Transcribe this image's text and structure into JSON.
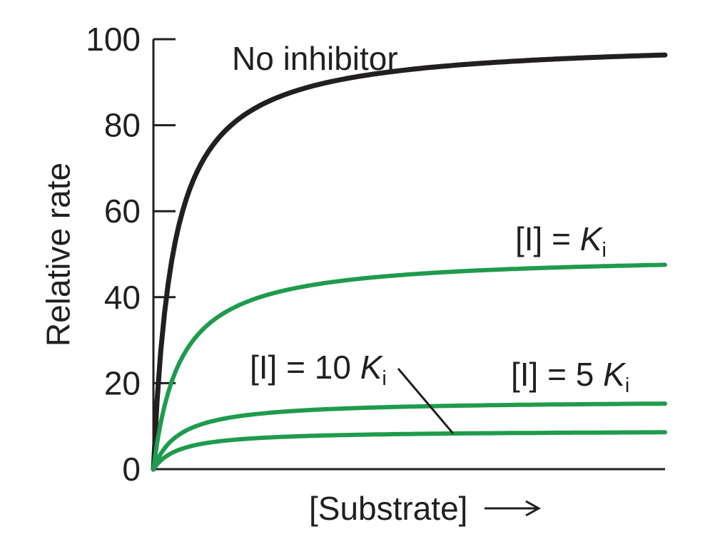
{
  "chart_data": {
    "type": "line",
    "title": "",
    "xlabel": "[Substrate]",
    "ylabel": "Relative rate",
    "ylim": [
      0,
      100
    ],
    "yticks": [
      0,
      20,
      40,
      60,
      80,
      100
    ],
    "xticks": [],
    "grid": false,
    "x_axis_arrow": true,
    "legend_position": "inline-annotations",
    "series": [
      {
        "name": "No inhibitor",
        "color": "#231f20",
        "vmax": 100,
        "km_fraction": 0.038,
        "plateau_value_shown": 96
      },
      {
        "name": "[I] = Ki",
        "color": "#1f9b4d",
        "vmax": 50,
        "km_fraction": 0.052,
        "plateau_value_shown": 48
      },
      {
        "name": "[I] = 5 Ki",
        "color": "#1f9b4d",
        "vmax": 16,
        "km_fraction": 0.05,
        "plateau_value_shown": 16
      },
      {
        "name": "[I] = 10 Ki",
        "color": "#1f9b4d",
        "vmax": 9,
        "km_fraction": 0.05,
        "plateau_value_shown": 9
      }
    ]
  },
  "labels": {
    "ylabel": "Relative rate",
    "xlabel": "[Substrate]",
    "no_inhibitor": "No inhibitor",
    "ki": {
      "prefix": "[I] = ",
      "symbol": "K",
      "sub": "i"
    },
    "ten_ki": {
      "prefix": "[I] = 10 ",
      "symbol": "K",
      "sub": "i"
    },
    "five_ki": {
      "prefix": "[I] = 5 ",
      "symbol": "K",
      "sub": "i"
    }
  },
  "colors": {
    "axis": "#231f20",
    "text": "#231f20",
    "curve_black": "#231f20",
    "curve_green": "#1f9b4d",
    "background": "#ffffff"
  }
}
